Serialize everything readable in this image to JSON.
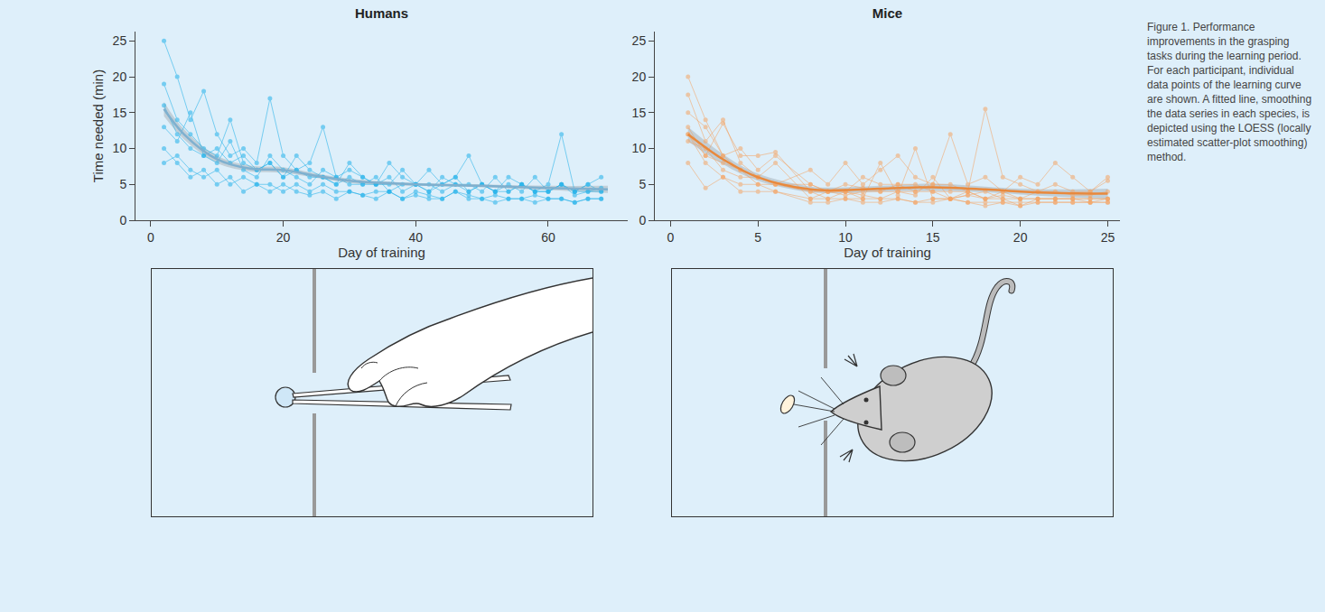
{
  "chart_data": [
    {
      "type": "scatter",
      "title": "Humans",
      "x_label": "Day of training",
      "y_label": "Time needed (min)",
      "xlim": [
        -2.3,
        72
      ],
      "xticks": [
        0,
        20,
        40,
        60
      ],
      "ylim": [
        0,
        26.3
      ],
      "yticks": [
        0,
        5,
        10,
        15,
        20,
        25
      ],
      "grid": false,
      "marker": "circle",
      "line_style": "solid",
      "x": [
        2,
        4,
        6,
        8,
        10,
        12,
        14,
        16,
        18,
        20,
        22,
        24,
        26,
        28,
        30,
        32,
        34,
        36,
        38,
        40,
        42,
        44,
        46,
        48,
        50,
        52,
        54,
        56,
        58,
        60,
        62,
        64,
        66,
        68
      ],
      "series": [
        {
          "color": "#1fb1ea",
          "values": [
            16,
            12,
            10,
            9,
            8,
            11,
            7,
            6,
            9,
            7,
            6,
            5,
            7,
            6,
            5,
            5,
            6,
            4,
            5,
            5,
            4,
            6,
            5,
            4,
            5,
            4,
            4,
            5,
            4,
            4,
            5,
            3.5,
            4,
            4
          ]
        },
        {
          "color": "#1fb1ea",
          "values": [
            25,
            20,
            14,
            18,
            12,
            9,
            10,
            8,
            17,
            9,
            7,
            8,
            13,
            6,
            7,
            6,
            5,
            8,
            6,
            5,
            7,
            5,
            6,
            9,
            5,
            4,
            6,
            5,
            4,
            5,
            12,
            4,
            5,
            6
          ]
        },
        {
          "color": "#1fb1ea",
          "values": [
            10,
            8,
            6,
            7,
            5,
            6,
            4,
            5,
            4,
            5,
            4,
            3.5,
            4,
            3,
            4,
            3.5,
            3,
            4,
            3,
            3.5,
            3,
            3,
            4,
            3,
            3,
            2.5,
            3,
            3,
            2.5,
            3,
            3,
            2.5,
            3,
            3
          ]
        },
        {
          "color": "#1fb1ea",
          "values": [
            13,
            11,
            15,
            9,
            10,
            8,
            9,
            7,
            8,
            6,
            7,
            6,
            6,
            5,
            6,
            5,
            5,
            6,
            4,
            5,
            5,
            4,
            5,
            5,
            4,
            6,
            4,
            5,
            4,
            4,
            5,
            4,
            4,
            4.5
          ]
        },
        {
          "color": "#1fb1ea",
          "values": [
            19,
            14,
            12,
            10,
            9,
            14,
            8,
            7,
            8,
            6,
            9,
            7,
            6,
            5,
            8,
            6,
            5,
            5,
            7,
            5,
            4,
            5,
            6,
            4,
            5,
            4,
            5,
            4,
            6,
            4,
            5,
            4,
            5,
            4
          ]
        },
        {
          "color": "#1fb1ea",
          "values": [
            8,
            9,
            7,
            6,
            7,
            5,
            6,
            5,
            5,
            4,
            5,
            4,
            5,
            4,
            4,
            3.5,
            4,
            4,
            3,
            4,
            3.5,
            3,
            4,
            3.5,
            3,
            3.5,
            3,
            3,
            3.5,
            3,
            3,
            2.5,
            3,
            3
          ]
        }
      ],
      "fit": {
        "color": "#7fb0cf",
        "x": [
          2,
          5,
          10,
          15,
          20,
          25,
          30,
          40,
          50,
          60,
          69
        ],
        "values": [
          15.5,
          12,
          8.5,
          7.2,
          7,
          6.2,
          5.5,
          5,
          4.8,
          4.5,
          4.3
        ],
        "lower": [
          14.5,
          11.3,
          8,
          6.8,
          6.6,
          5.9,
          5.2,
          4.8,
          4.6,
          4.2,
          3.8
        ],
        "upper": [
          16.5,
          12.7,
          9,
          7.6,
          7.4,
          6.5,
          5.8,
          5.2,
          5,
          4.8,
          4.8
        ]
      }
    },
    {
      "type": "scatter",
      "title": "Mice",
      "x_label": "Day of training",
      "xlim": [
        -0.9,
        25.7
      ],
      "xticks": [
        0,
        5,
        10,
        15,
        20,
        25
      ],
      "ylim": [
        0,
        26.3
      ],
      "yticks": [
        0,
        5,
        10,
        15,
        20,
        25
      ],
      "grid": false,
      "marker": "circle",
      "line_style": "solid",
      "x": [
        1,
        2,
        3,
        4,
        5,
        6,
        8,
        9,
        10,
        11,
        12,
        13,
        14,
        15,
        16,
        17,
        18,
        19,
        20,
        21,
        22,
        23,
        24,
        25
      ],
      "series": [
        {
          "color": "#f5a463",
          "values": [
            20,
            14,
            9,
            10,
            7,
            9,
            5,
            4,
            5,
            4.5,
            4,
            5,
            4,
            5,
            5,
            4,
            15.5,
            6,
            5,
            4,
            5,
            4,
            4,
            5.5
          ]
        },
        {
          "color": "#f5a463",
          "values": [
            12,
            8,
            6,
            5,
            5,
            4,
            3,
            3,
            3,
            3,
            3,
            3,
            2.5,
            3,
            3,
            2.5,
            2.5,
            2.5,
            2.5,
            2.5,
            2.5,
            2.5,
            2.5,
            2.5
          ]
        },
        {
          "color": "#f5a463",
          "values": [
            17.5,
            11,
            14,
            8,
            6,
            8,
            3,
            4,
            4,
            3,
            8,
            3.5,
            10,
            3,
            3,
            3.5,
            3,
            3,
            2,
            3,
            3,
            3,
            2.5,
            3
          ]
        },
        {
          "color": "#f5a463",
          "values": [
            13,
            9,
            8,
            7,
            6,
            5,
            4,
            4,
            3.5,
            4,
            4,
            4,
            4,
            4,
            3,
            3.5,
            4,
            3,
            3,
            3,
            3,
            3,
            3,
            3
          ]
        },
        {
          "color": "#f5a463",
          "values": [
            11,
            10,
            7,
            6,
            6,
            5,
            7,
            5,
            8,
            5,
            7,
            9,
            6,
            5,
            12,
            5,
            6,
            4,
            6,
            5,
            8,
            6,
            4,
            6
          ]
        },
        {
          "color": "#f5a463",
          "values": [
            15,
            13,
            9,
            7,
            5,
            5,
            5,
            4,
            4,
            6,
            5,
            5,
            5,
            4,
            4,
            4,
            3,
            4,
            3,
            4,
            4,
            3.5,
            3.5,
            4
          ]
        },
        {
          "color": "#f5a463",
          "values": [
            8,
            4.5,
            6,
            4,
            4,
            4,
            2.5,
            2.5,
            3,
            2.5,
            2.5,
            3,
            2.5,
            2.5,
            3,
            2.5,
            2,
            2.5,
            2,
            2.5,
            2.5,
            2.5,
            2.5,
            2.5
          ]
        },
        {
          "color": "#f5a463",
          "values": [
            12,
            9,
            13.5,
            9,
            9,
            9.5,
            4,
            3,
            4,
            3.5,
            3,
            4,
            3.5,
            6,
            3,
            4,
            3,
            3.5,
            3,
            3,
            3,
            3,
            3,
            3
          ]
        }
      ],
      "fit": {
        "color": "#e8893d",
        "x": [
          1,
          3,
          5,
          8,
          10,
          12,
          15,
          18,
          20,
          22,
          25
        ],
        "values": [
          12,
          8.5,
          6,
          4.3,
          4.2,
          4.4,
          4.6,
          4.3,
          4,
          3.8,
          3.7
        ],
        "lower": [
          11,
          7.8,
          5.5,
          3.9,
          3.8,
          4,
          4.1,
          3.9,
          3.6,
          3.3,
          3
        ],
        "upper": [
          13,
          9.2,
          6.5,
          4.7,
          4.6,
          4.8,
          5.1,
          4.7,
          4.4,
          4.3,
          4.4
        ]
      }
    }
  ],
  "caption": "Figure 1. Performance improvements in the grasping tasks during the learning period. For each participant, individual data points of the learning curve are shown. A fitted line, smoothing the data series in each species, is depicted using the LOESS (locally estimated scatter-plot smoothing) method."
}
